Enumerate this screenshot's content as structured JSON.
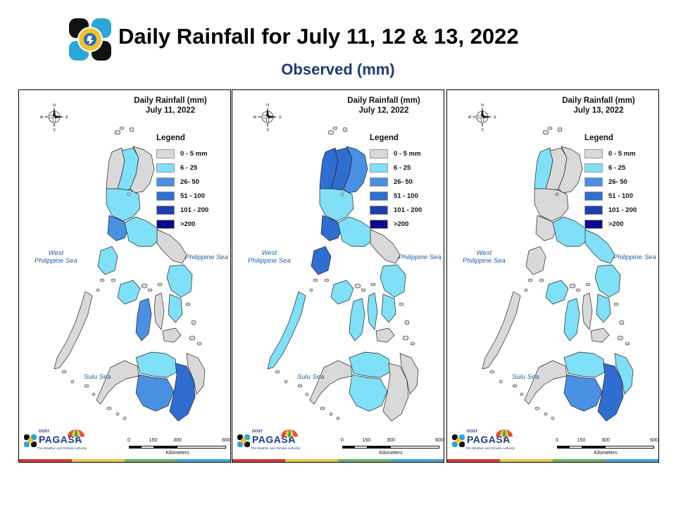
{
  "header": {
    "title": "Daily Rainfall for July 11, 12 & 13, 2022",
    "subtitle": "Observed (mm)",
    "logo_icon": "pagasa-seal-icon"
  },
  "legend": {
    "title": "Legend",
    "classes": [
      {
        "label": "0 - 5 mm",
        "color": "#d9d9d9"
      },
      {
        "label": "6 - 25",
        "color": "#7fe0f7"
      },
      {
        "label": "26- 50",
        "color": "#4a90e2"
      },
      {
        "label": "51 - 100",
        "color": "#2f6dd1"
      },
      {
        "label": "101 - 200",
        "color": "#1f3fb0"
      },
      {
        "label": ">200",
        "color": "#0a0a8a"
      }
    ]
  },
  "sea_labels": {
    "west": "West\nPhilippine Sea",
    "philippine": "Philippine Sea",
    "sulu": "Sulu Sea"
  },
  "compass_letters": {
    "n": "N",
    "s": "S",
    "e": "E",
    "w": "W"
  },
  "scale": {
    "ticks": [
      "0",
      "150",
      "300",
      "600"
    ],
    "unit": "Kilometers"
  },
  "branding": {
    "dost": "DOST",
    "name": "PAGASA",
    "tagline": "The Weather and Climate Authority"
  },
  "stripe_colors": [
    "#d63b3b",
    "#e6c84a",
    "#6bb36b",
    "#4aa3df"
  ],
  "panels": [
    {
      "title": "Daily Rainfall (mm)",
      "date": "July 11, 2022",
      "regions": {
        "ilocos": 0,
        "cordillera": 1,
        "cagayan": 0,
        "central_luzon": 1,
        "manila_bay": 2,
        "southern_luzon": 1,
        "bicol": 0,
        "mindoro": 1,
        "palawan": 0,
        "panay": 1,
        "negros": 2,
        "cebu": 0,
        "samar": 1,
        "leyte": 1,
        "bohol": 0,
        "zamboanga": 0,
        "north_mindanao": 1,
        "central_mindanao": 2,
        "davao": 3,
        "east_mindanao": 0
      }
    },
    {
      "title": "Daily Rainfall (mm)",
      "date": "July 12, 2022",
      "regions": {
        "ilocos": 3,
        "cordillera": 3,
        "cagayan": 2,
        "central_luzon": 1,
        "manila_bay": 3,
        "southern_luzon": 1,
        "bicol": 0,
        "mindoro": 3,
        "palawan": 1,
        "panay": 1,
        "negros": 1,
        "cebu": 1,
        "samar": 1,
        "leyte": 1,
        "bohol": 0,
        "zamboanga": 0,
        "north_mindanao": 1,
        "central_mindanao": 1,
        "davao": 0,
        "east_mindanao": 0
      }
    },
    {
      "title": "Daily Rainfall (mm)",
      "date": "July 13, 2022",
      "regions": {
        "ilocos": 1,
        "cordillera": 0,
        "cagayan": 0,
        "central_luzon": 0,
        "manila_bay": 0,
        "southern_luzon": 1,
        "bicol": 1,
        "mindoro": 0,
        "palawan": 0,
        "panay": 1,
        "negros": 1,
        "cebu": 0,
        "samar": 1,
        "leyte": 1,
        "bohol": 0,
        "zamboanga": 0,
        "north_mindanao": 1,
        "central_mindanao": 2,
        "davao": 3,
        "east_mindanao": 1
      }
    }
  ]
}
